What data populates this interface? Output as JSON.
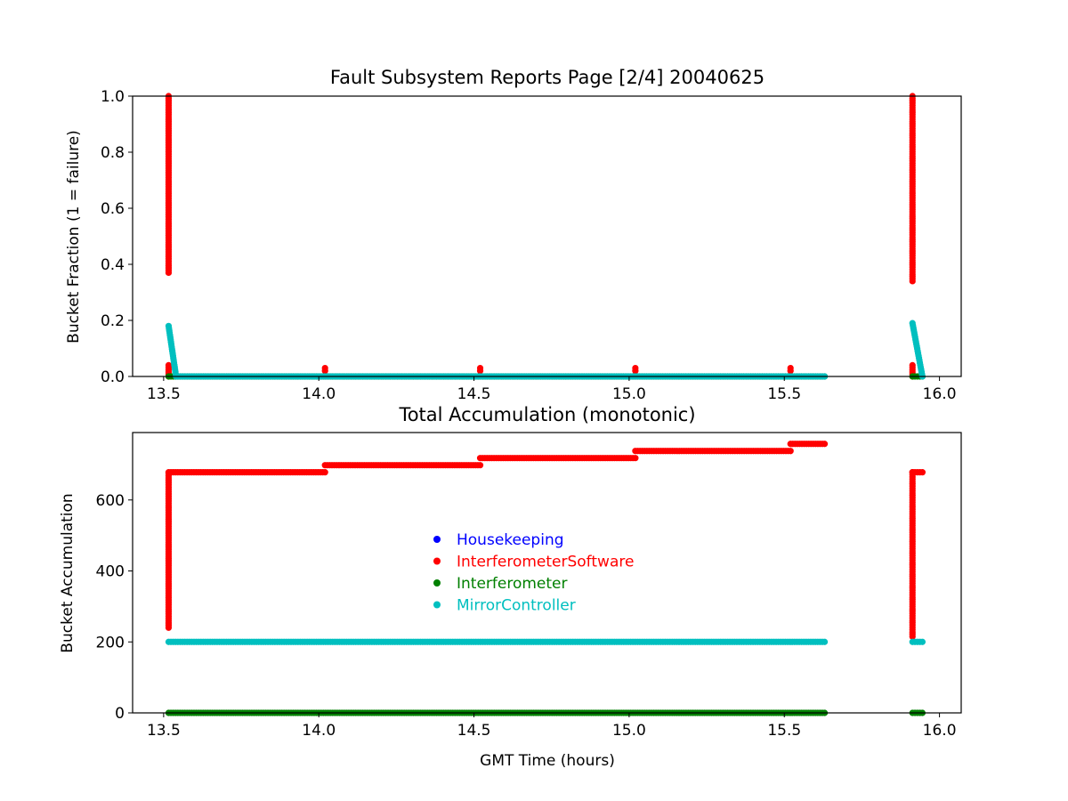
{
  "colors": {
    "Housekeeping": "#0000ff",
    "InterferometerSoftware": "#ff0000",
    "Interferometer": "#008000",
    "MirrorController": "#00bfbf"
  },
  "chart_data": [
    {
      "type": "scatter",
      "title": "Fault Subsystem Reports Page [2/4] 20040625",
      "xlabel": "",
      "ylabel": "Bucket Fraction (1 = failure)",
      "xlim": [
        13.4,
        16.07
      ],
      "ylim": [
        0.0,
        1.0
      ],
      "xticks": [
        "13.5",
        "14.0",
        "14.5",
        "15.0",
        "15.5",
        "16.0"
      ],
      "yticks": [
        "0.0",
        "0.2",
        "0.4",
        "0.6",
        "0.8",
        "1.0"
      ],
      "grid": false,
      "series": [
        {
          "name": "InterferometerSoftware",
          "segments": [
            {
              "x": [
                13.516,
                13.516
              ],
              "y": [
                0.37,
                1.0
              ]
            },
            {
              "x": [
                13.516,
                13.516
              ],
              "y": [
                0.0,
                0.04
              ]
            },
            {
              "x": [
                15.913,
                15.913
              ],
              "y": [
                0.34,
                1.0
              ]
            },
            {
              "x": [
                15.913,
                15.913
              ],
              "y": [
                0.0,
                0.04
              ]
            }
          ],
          "points": [
            [
              14.02,
              0.02
            ],
            [
              14.02,
              0.03
            ],
            [
              14.52,
              0.02
            ],
            [
              14.52,
              0.03
            ],
            [
              15.02,
              0.02
            ],
            [
              15.02,
              0.03
            ],
            [
              15.52,
              0.02
            ],
            [
              15.52,
              0.03
            ]
          ]
        },
        {
          "name": "Interferometer",
          "segments": [
            {
              "x": [
                13.516,
                15.63
              ],
              "y": [
                0.0,
                0.0
              ]
            },
            {
              "x": [
                15.913,
                15.945
              ],
              "y": [
                0.0,
                0.0
              ]
            }
          ],
          "points": []
        },
        {
          "name": "MirrorController",
          "segments": [
            {
              "x": [
                13.516,
                13.54
              ],
              "y": [
                0.18,
                0.0
              ]
            },
            {
              "x": [
                13.54,
                15.63
              ],
              "y": [
                0.0,
                0.0
              ]
            },
            {
              "x": [
                15.913,
                15.945
              ],
              "y": [
                0.19,
                0.0
              ]
            }
          ],
          "points": []
        }
      ]
    },
    {
      "type": "scatter",
      "title": "Total Accumulation (monotonic)",
      "xlabel": "GMT Time (hours)",
      "ylabel": "Bucket Accumulation",
      "xlim": [
        13.4,
        16.07
      ],
      "ylim": [
        0,
        790
      ],
      "xticks": [
        "13.5",
        "14.0",
        "14.5",
        "15.0",
        "15.5",
        "16.0"
      ],
      "yticks": [
        "0",
        "200",
        "400",
        "600"
      ],
      "grid": false,
      "legend": {
        "placement": "center",
        "entries": [
          "Housekeeping",
          "InterferometerSoftware",
          "Interferometer",
          "MirrorController"
        ]
      },
      "series": [
        {
          "name": "Housekeeping",
          "segments": [],
          "points": []
        },
        {
          "name": "InterferometerSoftware",
          "segments": [
            {
              "x": [
                13.516,
                13.516
              ],
              "y": [
                240,
                675
              ]
            },
            {
              "x": [
                13.516,
                14.02
              ],
              "y": [
                678,
                678
              ]
            },
            {
              "x": [
                14.02,
                14.52
              ],
              "y": [
                698,
                698
              ]
            },
            {
              "x": [
                14.52,
                15.02
              ],
              "y": [
                718,
                718
              ]
            },
            {
              "x": [
                15.02,
                15.52
              ],
              "y": [
                738,
                738
              ]
            },
            {
              "x": [
                15.52,
                15.63
              ],
              "y": [
                758,
                758
              ]
            },
            {
              "x": [
                15.913,
                15.913
              ],
              "y": [
                215,
                678
              ]
            },
            {
              "x": [
                15.913,
                15.945
              ],
              "y": [
                678,
                678
              ]
            }
          ],
          "points": []
        },
        {
          "name": "Interferometer",
          "segments": [
            {
              "x": [
                13.516,
                15.63
              ],
              "y": [
                0,
                0
              ]
            },
            {
              "x": [
                15.913,
                15.945
              ],
              "y": [
                0,
                0
              ]
            }
          ],
          "points": []
        },
        {
          "name": "MirrorController",
          "segments": [
            {
              "x": [
                13.516,
                15.63
              ],
              "y": [
                200,
                200
              ]
            },
            {
              "x": [
                15.913,
                15.945
              ],
              "y": [
                200,
                200
              ]
            }
          ],
          "points": []
        }
      ]
    }
  ]
}
